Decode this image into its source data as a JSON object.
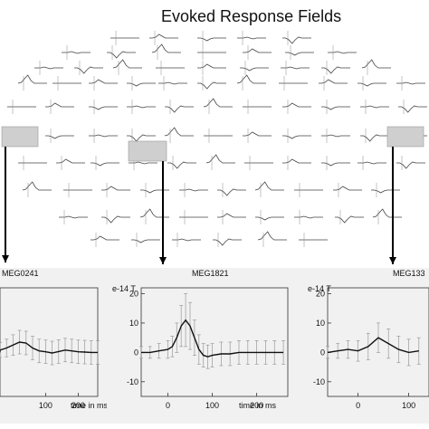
{
  "figure": {
    "title": "Evoked Response Fields"
  },
  "chart_data": [
    {
      "type": "line",
      "title": "Evoked Response Fields",
      "note": "topographic array of MEG sensor evoked responses"
    },
    {
      "type": "line",
      "title": "MEG0241",
      "unit": "",
      "xlabel": "time in ms",
      "ylabel": "",
      "xticks": [
        100,
        200
      ],
      "yticks": [],
      "x": [
        -80,
        -60,
        -40,
        -20,
        0,
        20,
        40,
        60,
        80,
        100,
        120,
        140,
        160,
        180,
        200,
        220,
        240,
        260
      ],
      "mean": [
        0,
        0.5,
        0.8,
        1.5,
        2.5,
        3.5,
        3.2,
        1.5,
        0.5,
        0.2,
        -0.2,
        0.3,
        0.8,
        0.5,
        0.2,
        0.1,
        0,
        0
      ],
      "error": [
        2,
        2,
        2.5,
        3,
        3.5,
        4,
        4,
        4,
        4,
        4,
        4,
        4,
        4,
        4,
        4,
        4,
        4,
        4
      ],
      "grid": false
    },
    {
      "type": "line",
      "title": "MEG1821",
      "unit": "e-14 T",
      "xlabel": "time in ms",
      "ylabel": "",
      "xticks": [
        0,
        100,
        200
      ],
      "yticks": [
        20,
        10,
        0,
        -10
      ],
      "ylim": [
        -15,
        22
      ],
      "x": [
        -60,
        -40,
        -20,
        0,
        10,
        20,
        30,
        40,
        50,
        60,
        70,
        80,
        90,
        100,
        120,
        140,
        160,
        180,
        200,
        220,
        240,
        260
      ],
      "mean": [
        0,
        0,
        0.5,
        1,
        2,
        5,
        9,
        11,
        9,
        5,
        1,
        -1,
        -1.5,
        -1,
        -0.5,
        -0.5,
        0,
        0,
        0,
        0,
        0,
        0
      ],
      "error": [
        2,
        2,
        2.5,
        3,
        3.5,
        5,
        7,
        9,
        8,
        6,
        5,
        4,
        4,
        4,
        4,
        4,
        4,
        4,
        4,
        4,
        4,
        4
      ],
      "grid": false
    },
    {
      "type": "line",
      "title": "MEG133",
      "unit": "e-14 T",
      "xlabel": "",
      "ylabel": "",
      "xticks": [
        0,
        100
      ],
      "yticks": [
        20,
        10,
        0,
        -10
      ],
      "ylim": [
        -15,
        22
      ],
      "x": [
        -60,
        -40,
        -20,
        0,
        20,
        40,
        60,
        80,
        100,
        120
      ],
      "mean": [
        0,
        0.5,
        1,
        0.5,
        2,
        5,
        3,
        1,
        0,
        0.5
      ],
      "error": [
        2,
        2.5,
        3,
        3.5,
        4.5,
        5,
        5,
        4.5,
        4.5,
        4.5
      ],
      "grid": false
    }
  ]
}
